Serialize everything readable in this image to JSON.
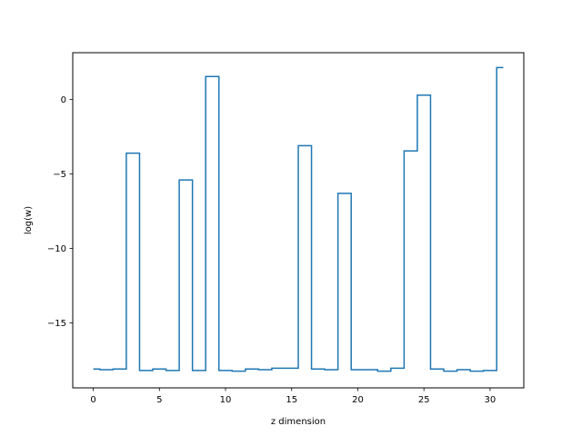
{
  "chart_data": {
    "type": "line",
    "drawstyle": "steps-mid",
    "title": "",
    "xlabel": "z dimension",
    "ylabel": "log(w)",
    "xlim": [
      -1.55,
      32.55
    ],
    "ylim": [
      -19.37,
      3.15
    ],
    "xticks": [
      0,
      5,
      10,
      15,
      20,
      25,
      30
    ],
    "xtick_labels": [
      "0",
      "5",
      "10",
      "15",
      "20",
      "25",
      "30"
    ],
    "yticks": [
      0,
      -5,
      -10,
      -15
    ],
    "ytick_labels": [
      "0",
      "−5",
      "−10",
      "−15"
    ],
    "grid": false,
    "legend": "none",
    "series": [
      {
        "color": "#1f77b4",
        "x": [
          0,
          1,
          2,
          3,
          4,
          5,
          6,
          7,
          8,
          9,
          10,
          11,
          12,
          13,
          14,
          15,
          16,
          17,
          18,
          19,
          20,
          21,
          22,
          23,
          24,
          25,
          26,
          27,
          28,
          29,
          30,
          31
        ],
        "y": [
          -18.1,
          -18.15,
          -18.1,
          -3.6,
          -18.2,
          -18.1,
          -18.2,
          -5.4,
          -18.2,
          1.55,
          -18.2,
          -18.25,
          -18.1,
          -18.15,
          -18.05,
          -18.05,
          -3.1,
          -18.1,
          -18.15,
          -6.3,
          -18.15,
          -18.15,
          -18.25,
          -18.05,
          -3.45,
          0.3,
          -18.1,
          -18.25,
          -18.15,
          -18.25,
          -18.2,
          2.15
        ]
      }
    ]
  }
}
